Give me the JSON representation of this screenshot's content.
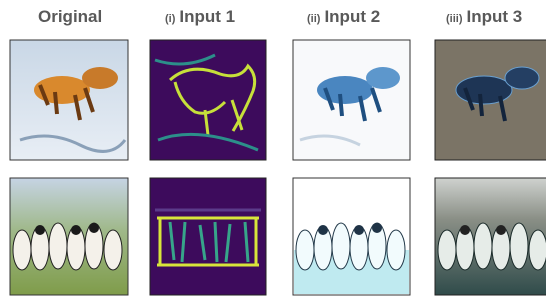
{
  "columns": [
    {
      "label": "Original"
    },
    {
      "prefix": "(i)",
      "label": "Input 1"
    },
    {
      "prefix": "(ii)",
      "label": "Input 2"
    },
    {
      "prefix": "(iii)",
      "label": "Input 3"
    }
  ]
}
